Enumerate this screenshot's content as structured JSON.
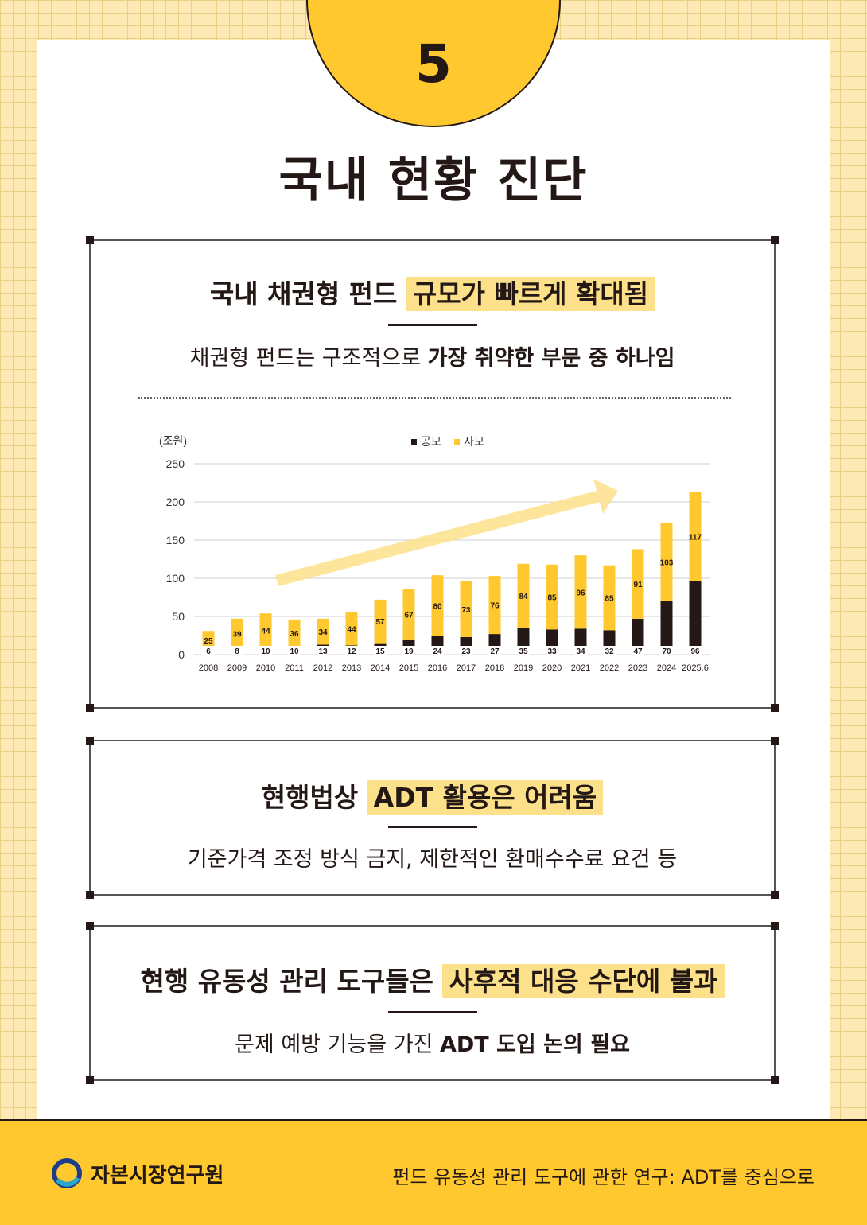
{
  "page_number": "5",
  "title": "국내 현황 진단",
  "box1": {
    "title_plain": "국내 채권형 펀드 ",
    "title_highlight": "규모가 빠르게 확대됨",
    "sub_plain": "채권형 펀드는 구조적으로 ",
    "sub_bold": "가장 취약한 부문 중 하나임"
  },
  "box2": {
    "title_plain": "현행법상 ",
    "title_highlight": "ADT 활용은 어려움",
    "sub": "기준가격 조정 방식 금지, 제한적인 환매수수료 요건 등"
  },
  "box3": {
    "title_plain": "현행 유동성 관리 도구들은 ",
    "title_highlight": "사후적 대응 수단에 불과",
    "sub_plain": "문제 예방 기능을 가진 ",
    "sub_bold": "ADT 도입 논의 필요"
  },
  "footer": {
    "org": "자본시장연구원",
    "report": "펀드 유동성 관리 도구에 관한 연구: ADT를 중심으로"
  },
  "colors": {
    "accent": "#fec82e",
    "highlight": "#fde08a",
    "dark": "#231815",
    "bar_private": "#fec82e",
    "bar_public": "#231815",
    "trend_arrow": "#fde08a"
  },
  "chart_data": {
    "type": "bar",
    "stacked": true,
    "ylabel": "(조원)",
    "ylim": [
      0,
      250
    ],
    "yticks": [
      0,
      50,
      100,
      150,
      200,
      250
    ],
    "grid": true,
    "legend": "top-center",
    "trend_arrow": true,
    "categories": [
      "2008",
      "2009",
      "2010",
      "2011",
      "2012",
      "2013",
      "2014",
      "2015",
      "2016",
      "2017",
      "2018",
      "2019",
      "2020",
      "2021",
      "2022",
      "2023",
      "2024",
      "2025.6"
    ],
    "series": [
      {
        "name": "공모",
        "values": [
          6,
          8,
          10,
          10,
          13,
          12,
          15,
          19,
          24,
          23,
          27,
          35,
          33,
          34,
          32,
          47,
          70,
          96
        ]
      },
      {
        "name": "사모",
        "values": [
          25,
          39,
          44,
          36,
          34,
          44,
          57,
          67,
          80,
          73,
          76,
          84,
          85,
          96,
          85,
          91,
          103,
          117
        ]
      }
    ]
  }
}
